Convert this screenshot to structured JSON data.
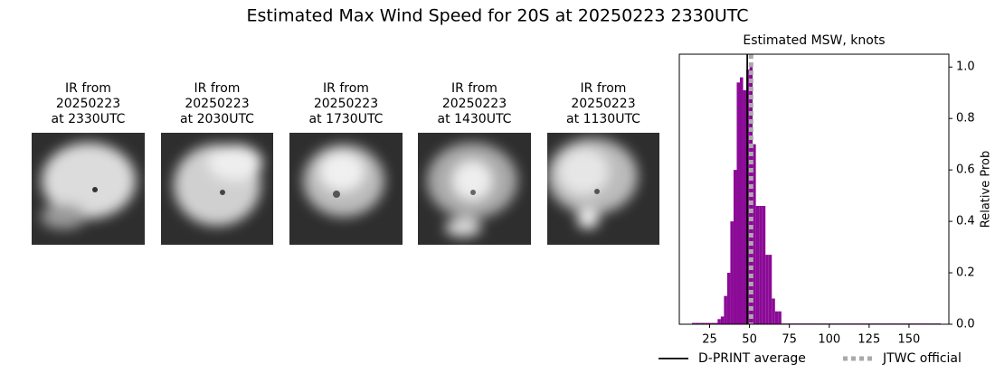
{
  "title": "Estimated Max Wind Speed for 20S at 20250223 2330UTC",
  "panels": [
    {
      "lines": [
        "IR from",
        "20250223",
        "at 2330UTC"
      ]
    },
    {
      "lines": [
        "IR from",
        "20250223",
        "at 2030UTC"
      ]
    },
    {
      "lines": [
        "IR from",
        "20250223",
        "at 1730UTC"
      ]
    },
    {
      "lines": [
        "IR from",
        "20250223",
        "at 1430UTC"
      ]
    },
    {
      "lines": [
        "IR from",
        "20250223",
        "at 1130UTC"
      ]
    }
  ],
  "chart_data": {
    "type": "histogram",
    "title": "Estimated MSW, knots",
    "ylabel": "Relative Prob",
    "bins": [
      14,
      16,
      18,
      20,
      22,
      24,
      26,
      28,
      30,
      32,
      34,
      36,
      38,
      40,
      42,
      44,
      46,
      48,
      50,
      52,
      54,
      56,
      58,
      60,
      62,
      64,
      66,
      68,
      70,
      72,
      74,
      76,
      78,
      80,
      82,
      84,
      86,
      88,
      90,
      92,
      94,
      96,
      98,
      100,
      102,
      104,
      106,
      108,
      110,
      112,
      114,
      116,
      118,
      120,
      122,
      124,
      126,
      128,
      130,
      132,
      134,
      136,
      138,
      140,
      142,
      144,
      146,
      148,
      150,
      152,
      154,
      156,
      158,
      160,
      162,
      164,
      166,
      168,
      170
    ],
    "values": [
      0.005,
      0.005,
      0.005,
      0.005,
      0.005,
      0.005,
      0.005,
      0.005,
      0.02,
      0.03,
      0.11,
      0.2,
      0.4,
      0.6,
      0.94,
      0.96,
      0.91,
      0.99,
      1.0,
      0.7,
      0.46,
      0.46,
      0.46,
      0.27,
      0.27,
      0.1,
      0.05,
      0.05,
      0.003,
      0.003,
      0.003,
      0.003,
      0.003,
      0.003,
      0.003,
      0.003,
      0.003,
      0.003,
      0.003,
      0.003,
      0.003,
      0.003,
      0.003,
      0.003,
      0.003,
      0.003,
      0.003,
      0.003,
      0.003,
      0.003,
      0.003,
      0.003,
      0.003,
      0.003,
      0.003,
      0.003,
      0.003,
      0.003,
      0.003,
      0.003,
      0.003,
      0.003,
      0.003,
      0.003,
      0.003,
      0.003,
      0.003,
      0.003,
      0.003,
      0.003,
      0.003,
      0.003,
      0.003,
      0.003,
      0.003,
      0.003,
      0.003,
      0.003
    ],
    "color": "#8b0a96",
    "xlim": [
      6,
      175
    ],
    "ylim": [
      0,
      1.05
    ],
    "xticks": [
      25,
      50,
      75,
      100,
      125,
      150
    ],
    "yticks": [
      {
        "value": 0,
        "label": "0.0"
      },
      0.2,
      0.4,
      0.6,
      0.8,
      {
        "value": 1,
        "label": "1.0"
      }
    ],
    "y_axis_side": "right",
    "reference_lines": [
      {
        "name": "D-PRINT average",
        "value": 48.6,
        "color": "#000000",
        "style": "solid"
      },
      {
        "name": "JTWC official",
        "value": 51,
        "color": "#aaaaaa",
        "style": "dotted"
      }
    ],
    "legend": "lower center"
  }
}
